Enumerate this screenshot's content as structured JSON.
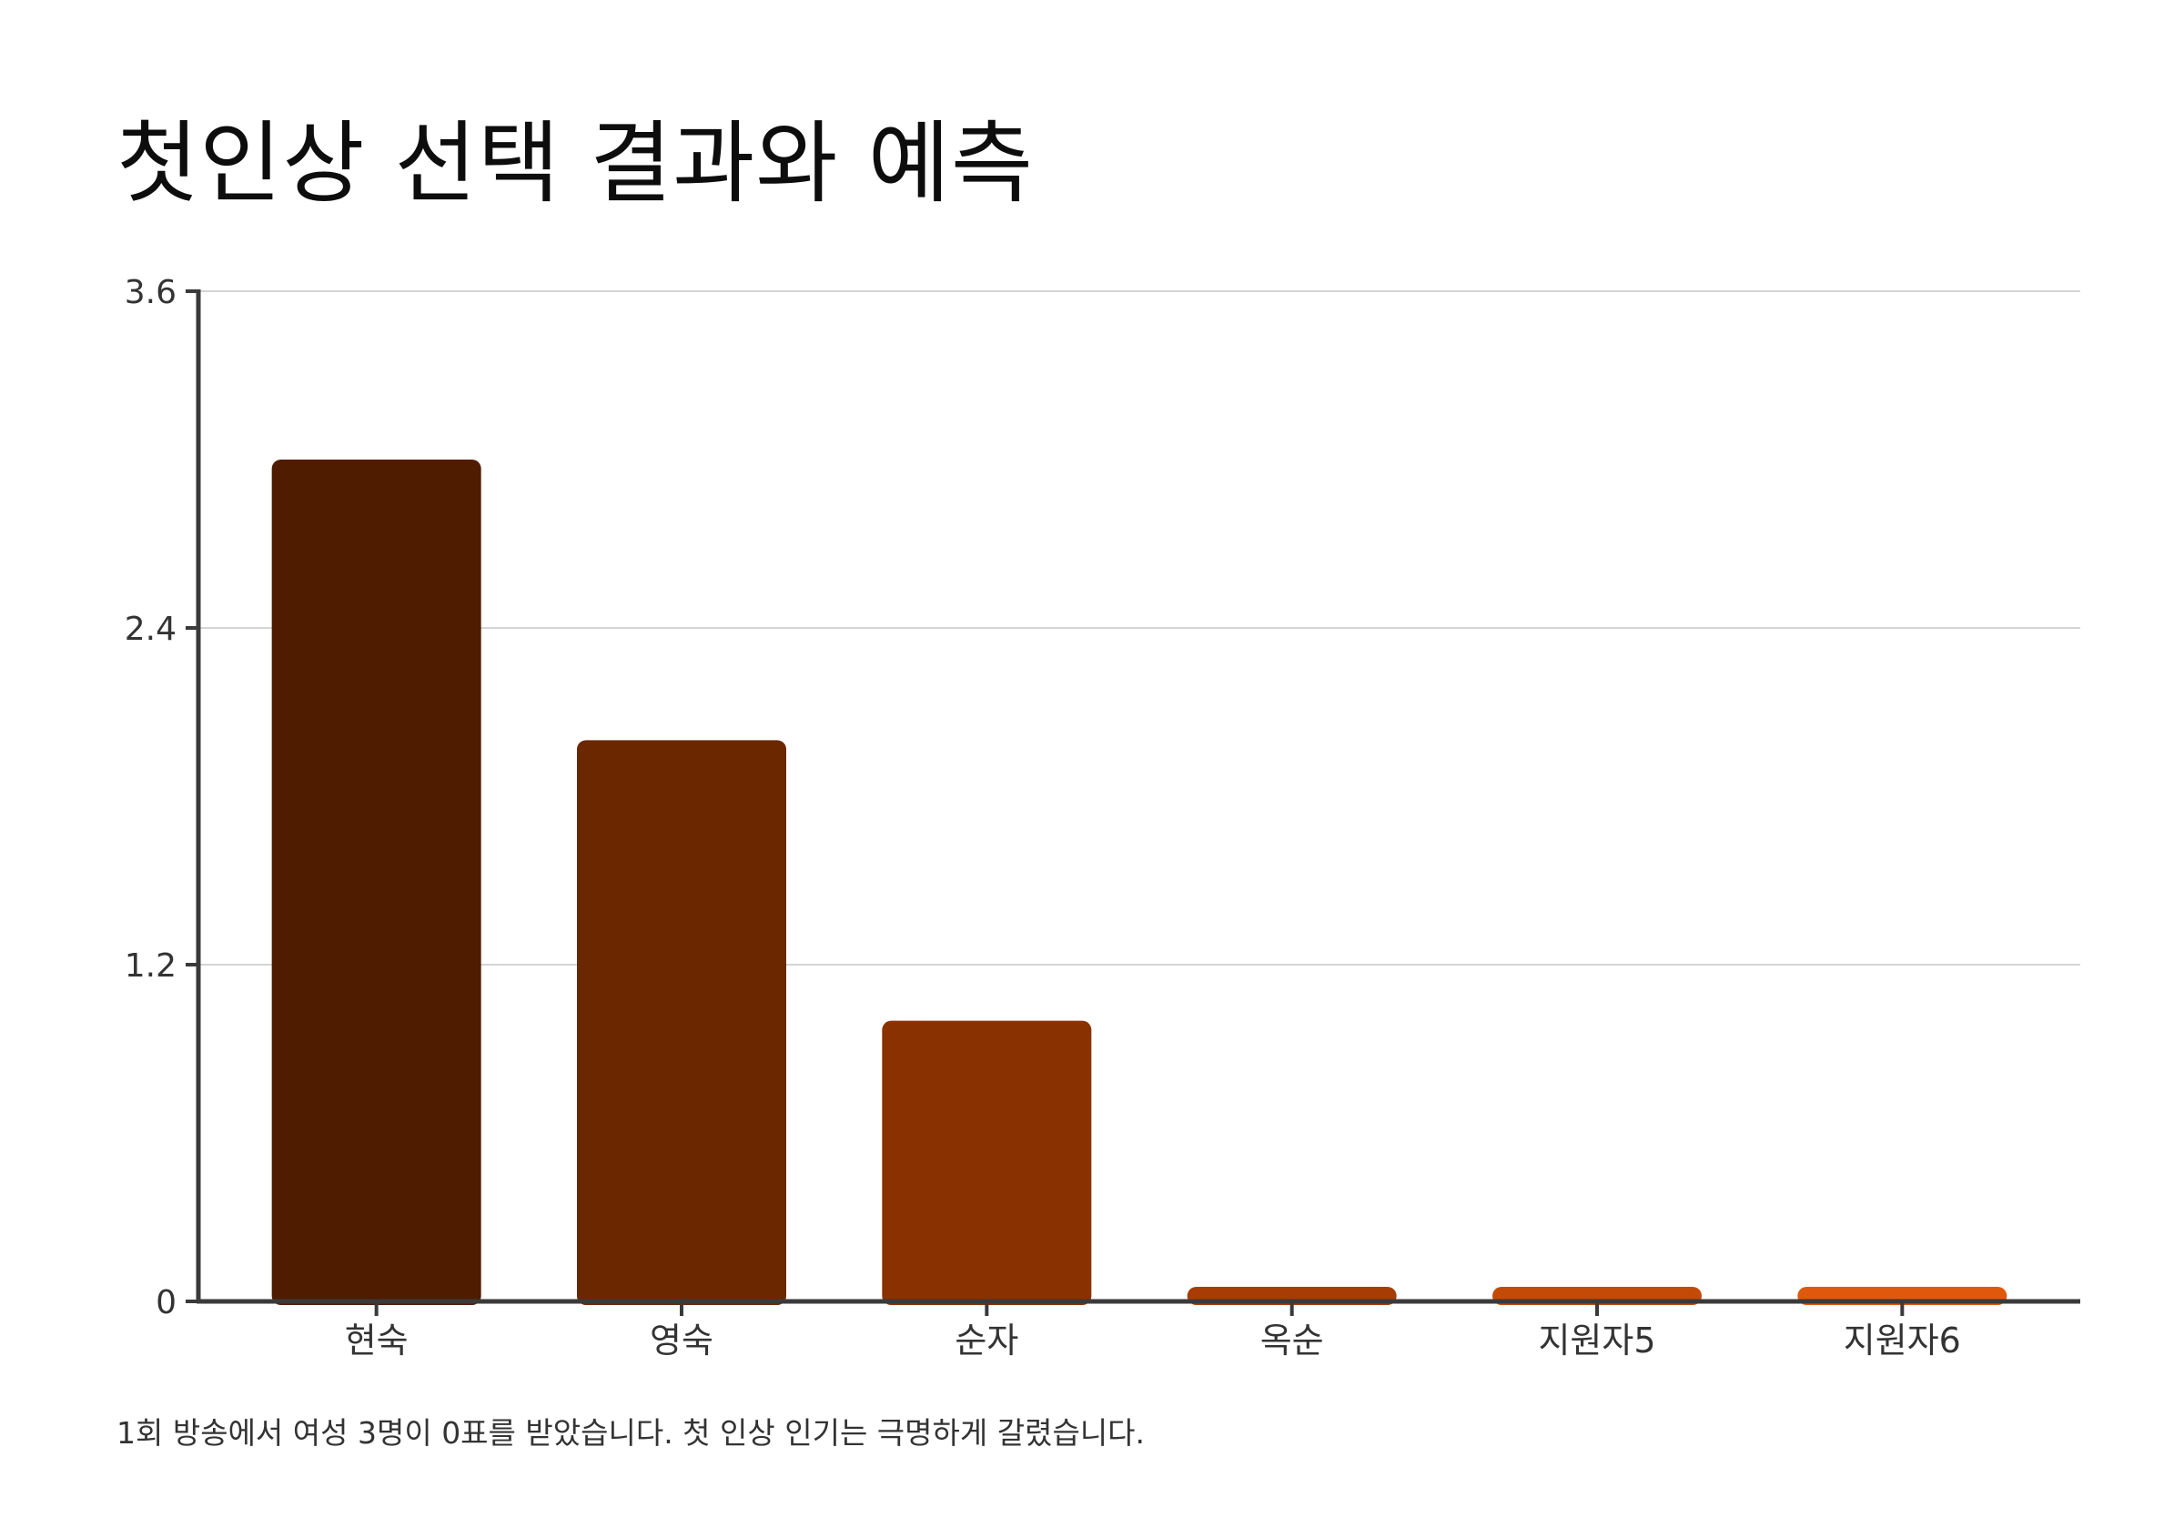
{
  "chart_data": {
    "type": "bar",
    "title": "첫인상 선택 결과와 예측",
    "note": "1회 방송에서 여성 3명이 0표를 받았습니다. 첫 인상 인기는 극명하게 갈렸습니다.",
    "categories": [
      "현숙",
      "영숙",
      "순자",
      "옥순",
      "지원자5",
      "지원자6"
    ],
    "values": [
      3,
      2,
      1,
      0,
      0,
      0
    ],
    "colors": [
      "#4f1c00",
      "#6b2700",
      "#8a3100",
      "#a83c05",
      "#c44a08",
      "#e0580c"
    ],
    "ylim": [
      0,
      3.6
    ],
    "yticks": [
      "0",
      "1.2",
      "2.4",
      "3.6"
    ],
    "ytick_values": [
      0,
      1.2,
      2.4,
      3.6
    ],
    "grid": true,
    "legend": "none",
    "xlabel": "",
    "ylabel": ""
  }
}
